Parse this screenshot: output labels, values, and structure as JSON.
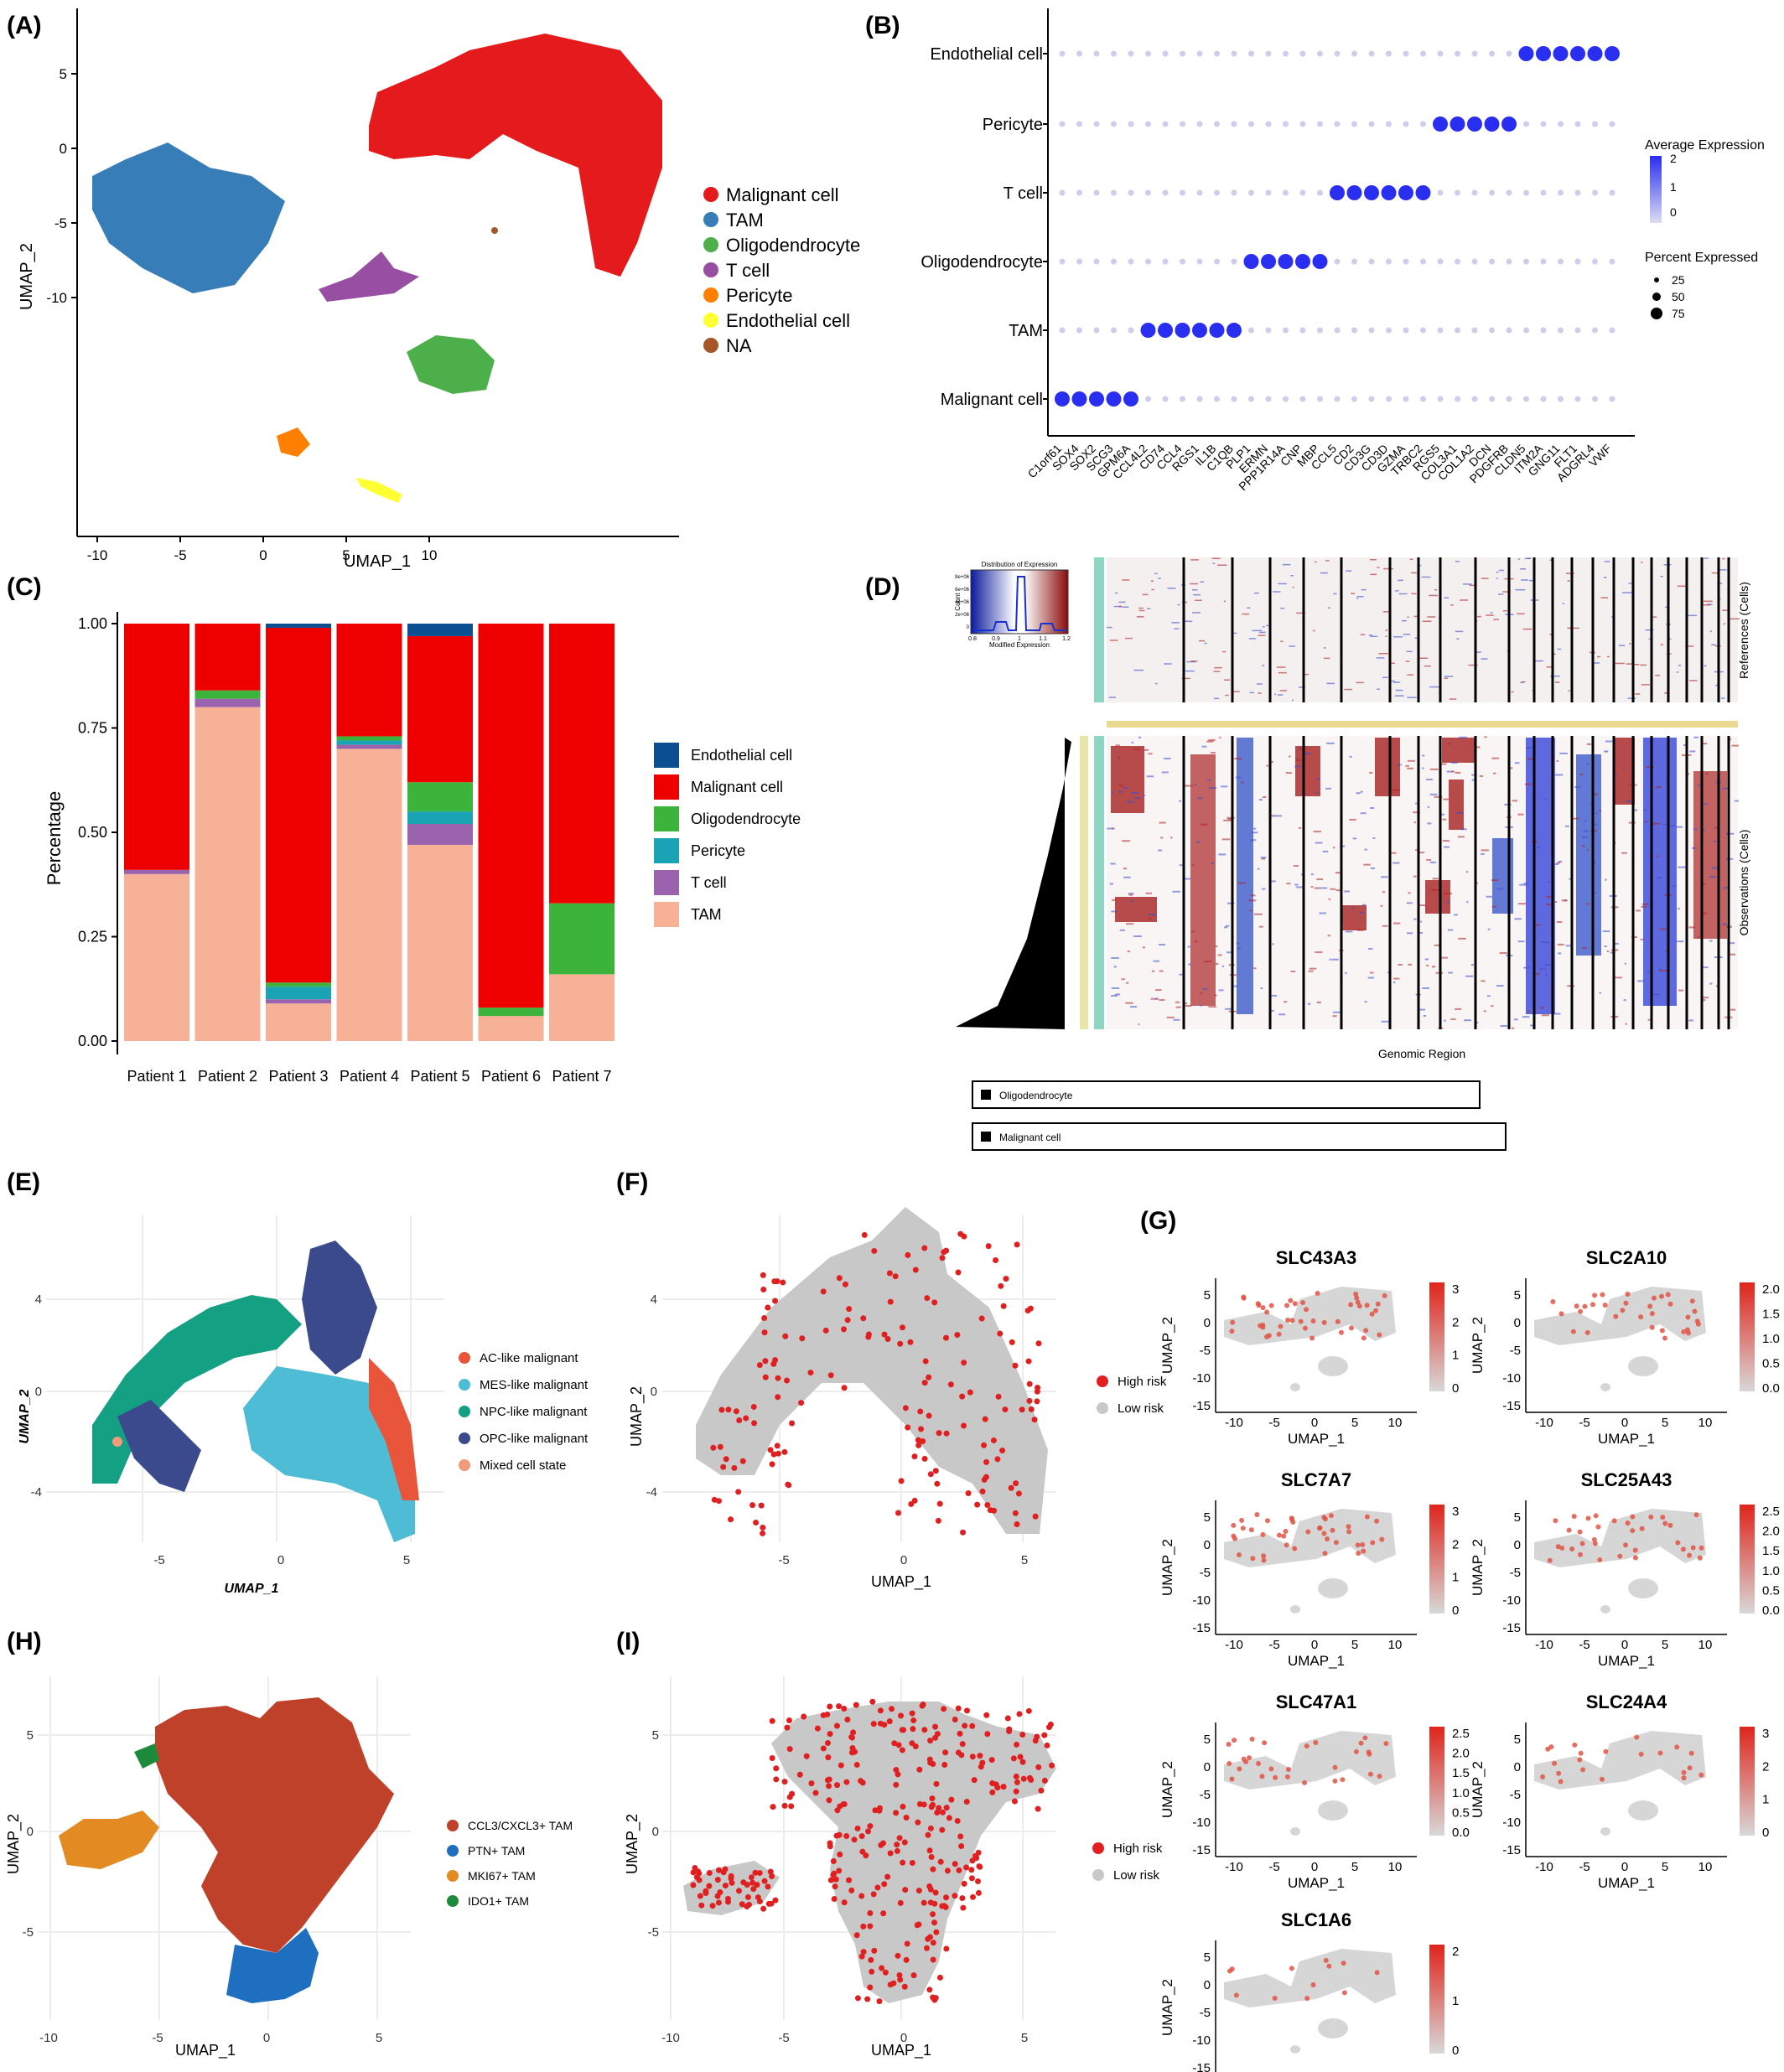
{
  "panels": {
    "A": {
      "label": "(A)",
      "xlabel": "UMAP_1",
      "ylabel": "UMAP_2",
      "xticks": [
        "-10",
        "-5",
        "0",
        "5",
        "10"
      ],
      "yticks": [
        "5",
        "0",
        "-5",
        "-10"
      ],
      "legend": [
        {
          "name": "Malignant cell",
          "color": "#e41a1c"
        },
        {
          "name": "TAM",
          "color": "#377eb8"
        },
        {
          "name": "Oligodendrocyte",
          "color": "#4daf4a"
        },
        {
          "name": "T cell",
          "color": "#984ea3"
        },
        {
          "name": "Pericyte",
          "color": "#ff7f00"
        },
        {
          "name": "Endothelial cell",
          "color": "#ffff33"
        },
        {
          "name": "NA",
          "color": "#a65628"
        }
      ]
    },
    "B": {
      "label": "(B)",
      "rows": [
        "Endothelial cell",
        "Pericyte",
        "T cell",
        "Oligodendrocyte",
        "TAM",
        "Malignant cell"
      ],
      "genes": [
        "C1orf61",
        "SOX4",
        "SOX2",
        "SCG3",
        "GPM6A",
        "CCL4L2",
        "CD74",
        "CCL4",
        "RGS1",
        "IL1B",
        "C1QB",
        "PLP1",
        "ERMN",
        "PPP1R14A",
        "CNP",
        "MBP",
        "CCL5",
        "CD2",
        "CD3G",
        "CD3D",
        "GZMA",
        "TRBC2",
        "RGS5",
        "COL3A1",
        "COL1A2",
        "DCN",
        "PDGFRB",
        "CLDN5",
        "ITM2A",
        "GNG11",
        "FLT1",
        "ADGRL4",
        "VWF"
      ],
      "legend_expr_title": "Average Expression",
      "legend_expr_ticks": [
        "2",
        "1",
        "0"
      ],
      "legend_pct_title": "Percent Expressed",
      "legend_pct_ticks": [
        "25",
        "50",
        "75"
      ]
    },
    "C": {
      "label": "(C)",
      "ylabel": "Percentage",
      "yticks": [
        "1.00",
        "0.75",
        "0.50",
        "0.25",
        "0.00"
      ],
      "legend": [
        {
          "name": "Endothelial cell",
          "color": "#0b4f92"
        },
        {
          "name": "Malignant cell",
          "color": "#ee0000"
        },
        {
          "name": "Oligodendrocyte",
          "color": "#3cb43c"
        },
        {
          "name": "Pericyte",
          "color": "#1aa3b5"
        },
        {
          "name": "T cell",
          "color": "#9b63ad"
        },
        {
          "name": "TAM",
          "color": "#f7b196"
        }
      ]
    },
    "D": {
      "label": "(D)",
      "inset_title": "Distribution of Expression",
      "inset_xlabel": "Modified Expression",
      "inset_ylabel": "Count",
      "inset_xticks": [
        "0.8",
        "0.9",
        "1",
        "1.1",
        "1.2"
      ],
      "inset_yticks": [
        "8e+06",
        "6e+06",
        "4e+06",
        "2e+06",
        "0"
      ],
      "ref_label": "References (Cells)",
      "obs_label": "Observations (Cells)",
      "xlabel": "Genomic Region",
      "box1": "Oligodendrocyte",
      "box2": "Malignant cell"
    },
    "E": {
      "label": "(E)",
      "xlabel": "UMAP_1",
      "ylabel": "UMAP_2",
      "xticks": [
        "-5",
        "0",
        "5"
      ],
      "yticks": [
        "4",
        "0",
        "-4"
      ],
      "legend": [
        {
          "name": "AC-like malignant",
          "color": "#e8553a"
        },
        {
          "name": "MES-like malignant",
          "color": "#4fbcd6"
        },
        {
          "name": "NPC-like malignant",
          "color": "#13a083"
        },
        {
          "name": "OPC-like malignant",
          "color": "#3b4a8c"
        },
        {
          "name": "Mixed cell state",
          "color": "#f19a7c"
        }
      ]
    },
    "F": {
      "label": "(F)",
      "xlabel": "UMAP_1",
      "ylabel": "UMAP_2",
      "xticks": [
        "-5",
        "0",
        "5"
      ],
      "yticks": [
        "4",
        "0",
        "-4"
      ],
      "legend": [
        {
          "name": "High risk",
          "color": "#e02020"
        },
        {
          "name": "Low risk",
          "color": "#c8c8c8"
        }
      ]
    },
    "G": {
      "label": "(G)",
      "genes": [
        {
          "name": "SLC43A3",
          "ticks": [
            "3",
            "2",
            "1",
            "0"
          ]
        },
        {
          "name": "SLC2A10",
          "ticks": [
            "2.0",
            "1.5",
            "1.0",
            "0.5",
            "0.0"
          ]
        },
        {
          "name": "SLC7A7",
          "ticks": [
            "3",
            "2",
            "1",
            "0"
          ]
        },
        {
          "name": "SLC25A43",
          "ticks": [
            "2.5",
            "2.0",
            "1.5",
            "1.0",
            "0.5",
            "0.0"
          ]
        },
        {
          "name": "SLC47A1",
          "ticks": [
            "2.5",
            "2.0",
            "1.5",
            "1.0",
            "0.5",
            "0.0"
          ]
        },
        {
          "name": "SLC24A4",
          "ticks": [
            "3",
            "2",
            "1",
            "0"
          ]
        },
        {
          "name": "SLC1A6",
          "ticks": [
            "2",
            "1",
            "0"
          ]
        }
      ],
      "xlabel": "UMAP_1",
      "ylabel": "UMAP_2",
      "xticks": [
        "-10",
        "-5",
        "0",
        "5",
        "10"
      ],
      "yticks": [
        "5",
        "0",
        "-5",
        "-10",
        "-15"
      ]
    },
    "H": {
      "label": "(H)",
      "xlabel": "UMAP_1",
      "ylabel": "UMAP_2",
      "xticks": [
        "-10",
        "-5",
        "0",
        "5"
      ],
      "yticks": [
        "5",
        "0",
        "-5"
      ],
      "legend": [
        {
          "name": "CCL3/CXCL3+ TAM",
          "color": "#c0412a"
        },
        {
          "name": "PTN+ TAM",
          "color": "#1f6fc0"
        },
        {
          "name": "MKI67+ TAM",
          "color": "#e38a22"
        },
        {
          "name": "IDO1+ TAM",
          "color": "#1e8a3c"
        }
      ]
    },
    "I": {
      "label": "(I)",
      "xlabel": "UMAP_1",
      "ylabel": "UMAP_2",
      "xticks": [
        "-10",
        "-5",
        "0",
        "5"
      ],
      "yticks": [
        "5",
        "0",
        "-5"
      ],
      "legend": [
        {
          "name": "High risk",
          "color": "#e02020"
        },
        {
          "name": "Low risk",
          "color": "#c8c8c8"
        }
      ]
    }
  },
  "chart_data": [
    {
      "type": "bar",
      "stacked": true,
      "panel": "C",
      "categories": [
        "Patient 1",
        "Patient 2",
        "Patient 3",
        "Patient 4",
        "Patient 5",
        "Patient 6",
        "Patient 7"
      ],
      "ylabel": "Percentage",
      "ylim": [
        0,
        1
      ],
      "series": [
        {
          "name": "TAM",
          "values": [
            0.4,
            0.8,
            0.09,
            0.7,
            0.47,
            0.06,
            0.16
          ]
        },
        {
          "name": "T cell",
          "values": [
            0.01,
            0.02,
            0.01,
            0.01,
            0.05,
            0.0,
            0.0
          ]
        },
        {
          "name": "Pericyte",
          "values": [
            0.0,
            0.0,
            0.03,
            0.01,
            0.03,
            0.0,
            0.0
          ]
        },
        {
          "name": "Oligodendrocyte",
          "values": [
            0.0,
            0.02,
            0.01,
            0.01,
            0.07,
            0.02,
            0.17
          ]
        },
        {
          "name": "Malignant cell",
          "values": [
            0.59,
            0.16,
            0.85,
            0.27,
            0.35,
            0.92,
            0.67
          ]
        },
        {
          "name": "Endothelial cell",
          "values": [
            0.0,
            0.0,
            0.01,
            0.0,
            0.03,
            0.0,
            0.0
          ]
        }
      ]
    },
    {
      "type": "scatter",
      "subtype": "dotplot",
      "panel": "B",
      "ylabel": "",
      "xlabel": "",
      "rows": [
        "Endothelial cell",
        "Pericyte",
        "T cell",
        "Oligodendrocyte",
        "TAM",
        "Malignant cell"
      ],
      "high_expression_genes": {
        "Endothelial cell": [
          "CLDN5",
          "ITM2A",
          "GNG11",
          "FLT1",
          "ADGRL4",
          "VWF"
        ],
        "Pericyte": [
          "RGS5",
          "COL3A1",
          "COL1A2",
          "DCN",
          "PDGFRB"
        ],
        "T cell": [
          "CCL5",
          "CD2",
          "CD3G",
          "CD3D",
          "GZMA",
          "TRBC2"
        ],
        "Oligodendrocyte": [
          "PLP1",
          "ERMN",
          "PPP1R14A",
          "CNP",
          "MBP"
        ],
        "TAM": [
          "CCL4L2",
          "CD74",
          "CCL4",
          "RGS1",
          "IL1B",
          "C1QB"
        ],
        "Malignant cell": [
          "C1orf61",
          "SOX4",
          "SOX2",
          "SCG3",
          "GPM6A"
        ]
      }
    }
  ]
}
